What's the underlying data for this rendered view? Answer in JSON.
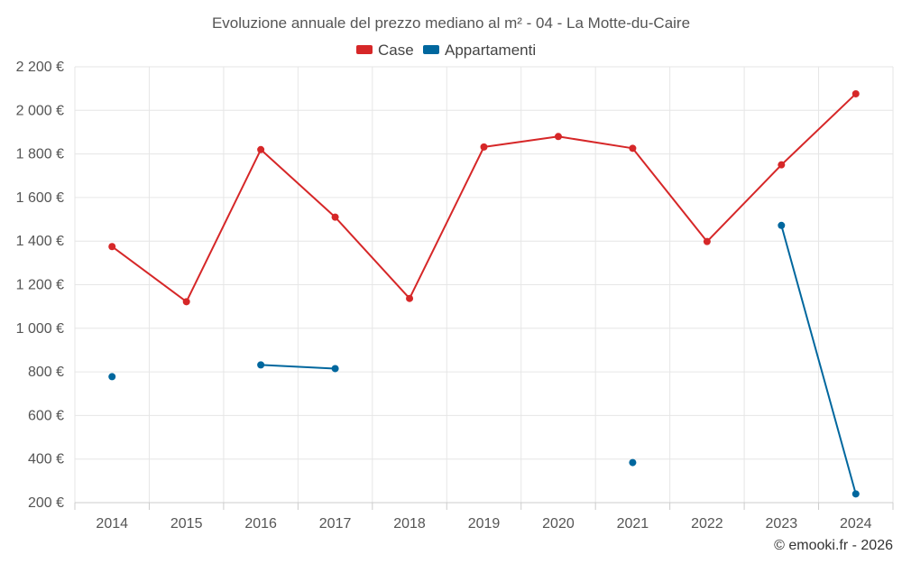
{
  "chart_data": {
    "type": "line",
    "title": "Evoluzione annuale del prezzo mediano al m² - 04 - La Motte-du-Caire",
    "categories": [
      "2014",
      "2015",
      "2016",
      "2017",
      "2018",
      "2019",
      "2020",
      "2021",
      "2022",
      "2023",
      "2024"
    ],
    "ylim": [
      200,
      2200
    ],
    "yticks": [
      200,
      400,
      600,
      800,
      1000,
      1200,
      1400,
      1600,
      1800,
      2000,
      2200
    ],
    "ytick_labels": [
      "200 €",
      "400 €",
      "600 €",
      "800 €",
      "1 000 €",
      "1 200 €",
      "1 400 €",
      "1 600 €",
      "1 800 €",
      "2 000 €",
      "2 200 €"
    ],
    "series": [
      {
        "name": "Case",
        "color": "#d62728",
        "values": [
          1375,
          1122,
          1820,
          1510,
          1137,
          1832,
          1880,
          1826,
          1398,
          1750,
          2076
        ]
      },
      {
        "name": "Appartamenti",
        "color": "#00679e",
        "values": [
          778,
          null,
          832,
          815,
          null,
          null,
          null,
          384,
          null,
          1472,
          240
        ]
      }
    ],
    "grid": true,
    "legend_position": "top-center",
    "credit": "© emooki.fr - 2026"
  }
}
